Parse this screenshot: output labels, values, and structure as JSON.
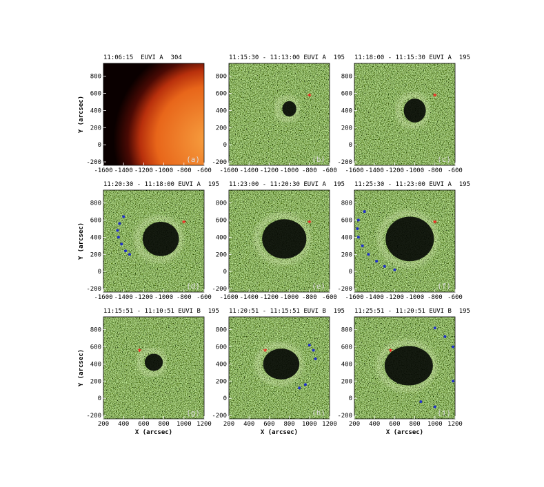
{
  "figure": {
    "panels": [
      {
        "title": "11:06:15  EUVI A  304",
        "label": "(a)",
        "y_label": "Y (arcsec)",
        "xlim": [
          -1600,
          -600
        ],
        "xticks": [
          -1600,
          -1400,
          -1200,
          -1000,
          -800,
          -600
        ],
        "ylim": [
          -240,
          950
        ],
        "yticks": [
          -200,
          0,
          200,
          400,
          600,
          800
        ]
      },
      {
        "title": "11:15:30 - 11:13:00 EUVI A  195",
        "label": "(b)",
        "xlim": [
          -1600,
          -600
        ],
        "xticks": [
          -1600,
          -1400,
          -1200,
          -1000,
          -800,
          -600
        ],
        "ylim": [
          -240,
          950
        ],
        "yticks": [
          -200,
          0,
          200,
          400,
          600,
          800
        ]
      },
      {
        "title": "11:18:00 - 11:15:30 EUVI A  195",
        "label": "(c)",
        "xlim": [
          -1600,
          -600
        ],
        "xticks": [
          -1600,
          -1400,
          -1200,
          -1000,
          -800,
          -600
        ],
        "ylim": [
          -240,
          950
        ],
        "yticks": [
          -200,
          0,
          200,
          400,
          600,
          800
        ]
      },
      {
        "title": "11:20:30 - 11:18:00 EUVI A  195",
        "label": "(d)",
        "y_label": "Y (arcsec)",
        "xlim": [
          -1600,
          -600
        ],
        "xticks": [
          -1600,
          -1400,
          -1200,
          -1000,
          -800,
          -600
        ],
        "ylim": [
          -240,
          950
        ],
        "yticks": [
          -200,
          0,
          200,
          400,
          600,
          800
        ]
      },
      {
        "title": "11:23:00 - 11:20:30 EUVI A  195",
        "label": "(e)",
        "xlim": [
          -1600,
          -600
        ],
        "xticks": [
          -1600,
          -1400,
          -1200,
          -1000,
          -800,
          -600
        ],
        "ylim": [
          -240,
          950
        ],
        "yticks": [
          -200,
          0,
          200,
          400,
          600,
          800
        ]
      },
      {
        "title": "11:25:30 - 11:23:00 EUVI A  195",
        "label": "(f)",
        "xlim": [
          -1600,
          -600
        ],
        "xticks": [
          -1600,
          -1400,
          -1200,
          -1000,
          -800,
          -600
        ],
        "ylim": [
          -240,
          950
        ],
        "yticks": [
          -200,
          0,
          200,
          400,
          600,
          800
        ]
      },
      {
        "title": "11:15:51 - 11:10:51 EUVI B  195",
        "label": "(g)",
        "y_label": "Y (arcsec)",
        "x_label": "X (arcsec)",
        "xlim": [
          200,
          1200
        ],
        "xticks": [
          200,
          400,
          600,
          800,
          1000,
          1200
        ],
        "ylim": [
          -240,
          950
        ],
        "yticks": [
          -200,
          0,
          200,
          400,
          600,
          800
        ]
      },
      {
        "title": "11:20:51 - 11:15:51 EUVI B  195",
        "label": "(h)",
        "x_label": "X (arcsec)",
        "xlim": [
          200,
          1200
        ],
        "xticks": [
          200,
          400,
          600,
          800,
          1000,
          1200
        ],
        "ylim": [
          -240,
          950
        ],
        "yticks": [
          -200,
          0,
          200,
          400,
          600,
          800
        ]
      },
      {
        "title": "11:25:51 - 11:20:51 EUVI B  195",
        "label": "(i)",
        "x_label": "X (arcsec)",
        "xlim": [
          200,
          1200
        ],
        "xticks": [
          200,
          400,
          600,
          800,
          1000,
          1200
        ],
        "ylim": [
          -240,
          950
        ],
        "yticks": [
          -200,
          0,
          200,
          400,
          600,
          800
        ]
      }
    ]
  }
}
